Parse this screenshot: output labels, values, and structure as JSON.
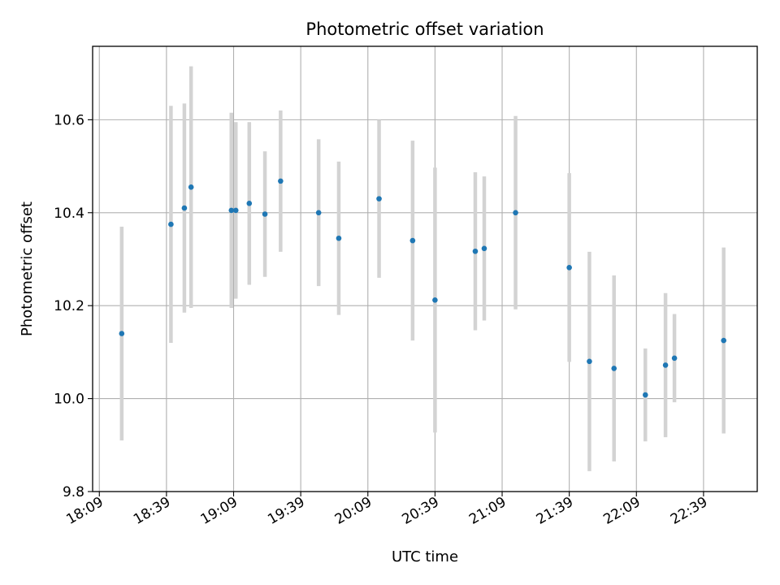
{
  "chart_data": {
    "type": "scatter",
    "title": "Photometric offset variation",
    "xlabel": "UTC time",
    "ylabel": "Photometric offset",
    "x_ticks": [
      "18:09",
      "18:39",
      "19:09",
      "19:39",
      "20:09",
      "20:39",
      "21:09",
      "21:39",
      "22:09",
      "22:39"
    ],
    "y_ticks": [
      "9.8",
      "10.0",
      "10.2",
      "10.4",
      "10.6"
    ],
    "xlim": [
      "18:06",
      "23:03"
    ],
    "ylim": [
      9.8,
      10.758
    ],
    "grid": true,
    "series": [
      {
        "color": "#1f77b4",
        "errorbar_color": "#d3d3d3",
        "points": [
          {
            "x": "18:19",
            "y": 10.14,
            "yerr": 0.23
          },
          {
            "x": "18:41",
            "y": 10.375,
            "yerr": 0.255
          },
          {
            "x": "18:47",
            "y": 10.41,
            "yerr": 0.225
          },
          {
            "x": "18:50",
            "y": 10.455,
            "yerr": 0.26
          },
          {
            "x": "19:08",
            "y": 10.405,
            "yerr": 0.21
          },
          {
            "x": "19:10",
            "y": 10.405,
            "yerr": 0.19
          },
          {
            "x": "19:16",
            "y": 10.42,
            "yerr": 0.175
          },
          {
            "x": "19:23",
            "y": 10.397,
            "yerr": 0.135
          },
          {
            "x": "19:30",
            "y": 10.468,
            "yerr": 0.152
          },
          {
            "x": "19:47",
            "y": 10.4,
            "yerr": 0.158
          },
          {
            "x": "19:56",
            "y": 10.345,
            "yerr": 0.165
          },
          {
            "x": "20:14",
            "y": 10.43,
            "yerr": 0.17
          },
          {
            "x": "20:29",
            "y": 10.34,
            "yerr": 0.215
          },
          {
            "x": "20:39",
            "y": 10.212,
            "yerr": 0.285
          },
          {
            "x": "20:57",
            "y": 10.317,
            "yerr": 0.17
          },
          {
            "x": "21:01",
            "y": 10.323,
            "yerr": 0.155
          },
          {
            "x": "21:15",
            "y": 10.4,
            "yerr": 0.208
          },
          {
            "x": "21:39",
            "y": 10.282,
            "yerr": 0.203
          },
          {
            "x": "21:48",
            "y": 10.08,
            "yerr": 0.236
          },
          {
            "x": "21:59",
            "y": 10.065,
            "yerr": 0.2
          },
          {
            "x": "22:13",
            "y": 10.008,
            "yerr": 0.1
          },
          {
            "x": "22:22",
            "y": 10.072,
            "yerr": 0.155
          },
          {
            "x": "22:26",
            "y": 10.087,
            "yerr": 0.095
          },
          {
            "x": "22:48",
            "y": 10.125,
            "yerr": 0.2
          }
        ]
      }
    ]
  }
}
